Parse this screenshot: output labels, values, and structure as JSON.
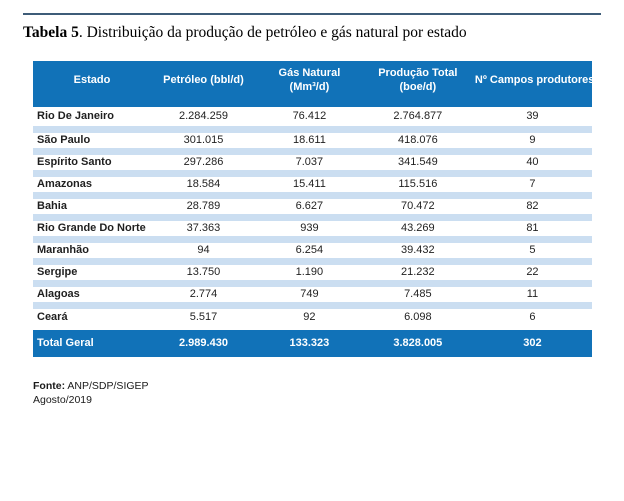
{
  "document": {
    "title": {
      "label_bold": "Tabela 5",
      "label_rest": ". Distribuição da produção de petróleo e gás natural por estado"
    }
  },
  "table": {
    "columns": [
      {
        "lines": [
          "Estado"
        ]
      },
      {
        "lines": [
          "Petróleo (bbl/d)"
        ]
      },
      {
        "lines": [
          "Gás Natural",
          "(Mm³/d)"
        ]
      },
      {
        "lines": [
          "Produção Total",
          "(boe/d)"
        ]
      },
      {
        "lines": [
          "Nº Campos produtores"
        ]
      }
    ],
    "rows": [
      [
        "Rio De Janeiro",
        "2.284.259",
        "76.412",
        "2.764.877",
        "39"
      ],
      [
        "São Paulo",
        "301.015",
        "18.611",
        "418.076",
        "9"
      ],
      [
        "Espírito Santo",
        "297.286",
        "7.037",
        "341.549",
        "40"
      ],
      [
        "Amazonas",
        "18.584",
        "15.411",
        "115.516",
        "7"
      ],
      [
        "Bahia",
        "28.789",
        "6.627",
        "70.472",
        "82"
      ],
      [
        "Rio Grande Do Norte",
        "37.363",
        "939",
        "43.269",
        "81"
      ],
      [
        "Maranhão",
        "94",
        "6.254",
        "39.432",
        "5"
      ],
      [
        "Sergipe",
        "13.750",
        "1.190",
        "21.232",
        "22"
      ],
      [
        "Alagoas",
        "2.774",
        "749",
        "7.485",
        "11"
      ],
      [
        "Ceará",
        "5.517",
        "92",
        "6.098",
        "6"
      ]
    ],
    "total_row": [
      "Total Geral",
      "2.989.430",
      "133.323",
      "3.828.005",
      "302"
    ],
    "colors": {
      "header_bg": "#1172B8",
      "band": "#CBDEF1",
      "rule": "#3E5C78",
      "text": "#1F1F1F"
    }
  },
  "footer": {
    "source_label": "Fonte:",
    "source_value": "ANP/SDP/SIGEP",
    "date": "Agosto/2019"
  }
}
